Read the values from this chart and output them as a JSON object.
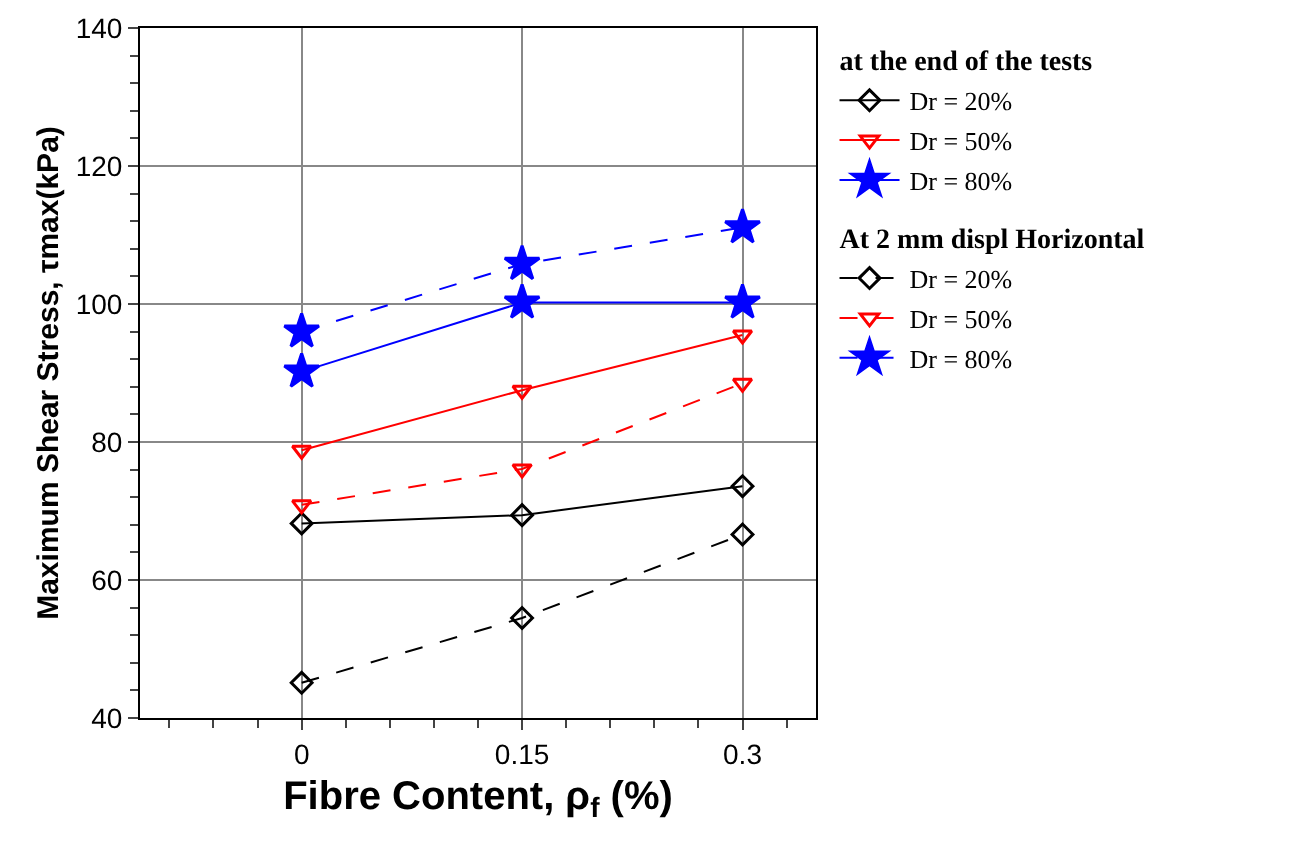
{
  "chart_data": {
    "type": "line",
    "xlabel": "Fibre Content, ρ$_{f}$ (%)",
    "ylabel": "Maximum Shear Stress, τmax(kPa)",
    "x": [
      0,
      0.15,
      0.3
    ],
    "series": [
      {
        "name": "Dr = 20%",
        "color": "#000000",
        "values": [
          68.2,
          69.4,
          73.6
        ],
        "marker": "diamond",
        "line_style": "solid"
      },
      {
        "name": "Dr = 50%",
        "color": "#ff0000",
        "values": [
          78.8,
          87.5,
          95.5
        ],
        "marker": "triangle",
        "line_style": "solid"
      },
      {
        "name": "Dr = 80%",
        "color": "#0000ff",
        "values": [
          90.2,
          100.2,
          100.2
        ],
        "marker": "star",
        "line_style": "solid"
      },
      {
        "name": "Dr = 20%",
        "color": "#000000",
        "values": [
          45.1,
          54.5,
          66.6
        ],
        "marker": "diamond",
        "line_style": "dashed"
      },
      {
        "name": "Dr = 50%",
        "color": "#ff0000",
        "values": [
          70.9,
          76.1,
          88.5
        ],
        "marker": "triangle",
        "line_style": "dashed"
      },
      {
        "name": "Dr = 80%",
        "color": "#0000ff",
        "values": [
          96,
          105.8,
          111.1
        ],
        "marker": "star",
        "line_style": "dashed"
      }
    ],
    "annotations": [
      "at the end of the tests",
      "At 2 mm displ Horizontal"
    ],
    "xlim": [
      -0.11,
      0.35
    ],
    "xticks": [
      0,
      0.15,
      0.3
    ],
    "ylim": [
      40,
      140
    ],
    "yticks": [
      40,
      60,
      80,
      100,
      120,
      140
    ],
    "grid": true,
    "legend": "right"
  }
}
